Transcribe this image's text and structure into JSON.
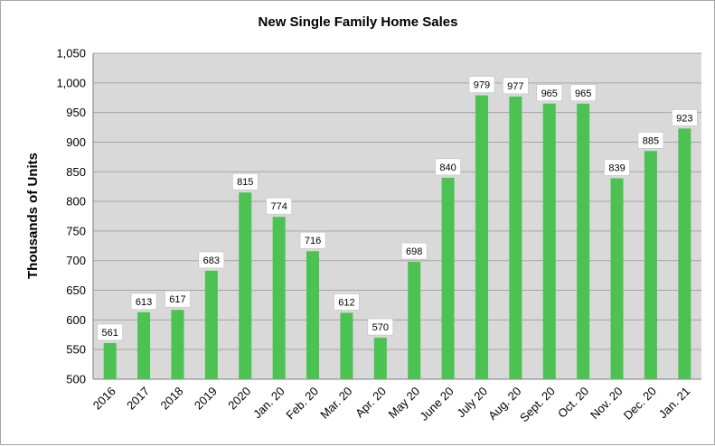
{
  "chart_data": {
    "type": "bar",
    "title": "New Single Family Home Sales",
    "xlabel": "",
    "ylabel": "Thousands of Units",
    "ylim": [
      500,
      1050
    ],
    "yticks": [
      "500",
      "550",
      "600",
      "650",
      "700",
      "750",
      "800",
      "850",
      "900",
      "950",
      "1,000",
      "1,050"
    ],
    "grid": true,
    "legend": "none",
    "colors": {
      "bar": "#4cc253",
      "plot_background": "#d9d9d9",
      "gridline": "#a6a6a6",
      "label_box": "#ffffff"
    },
    "categories": [
      "2016",
      "2017",
      "2018",
      "2019",
      "2020",
      "Jan. 20",
      "Feb. 20",
      "Mar. 20",
      "Apr. 20",
      "May 20",
      "June 20",
      "July 20",
      "Aug. 20",
      "Sept. 20",
      "Oct. 20",
      "Nov. 20",
      "Dec. 20",
      "Jan. 21"
    ],
    "values": [
      561,
      613,
      617,
      683,
      815,
      774,
      716,
      612,
      570,
      698,
      840,
      979,
      977,
      965,
      965,
      839,
      885,
      923
    ]
  }
}
